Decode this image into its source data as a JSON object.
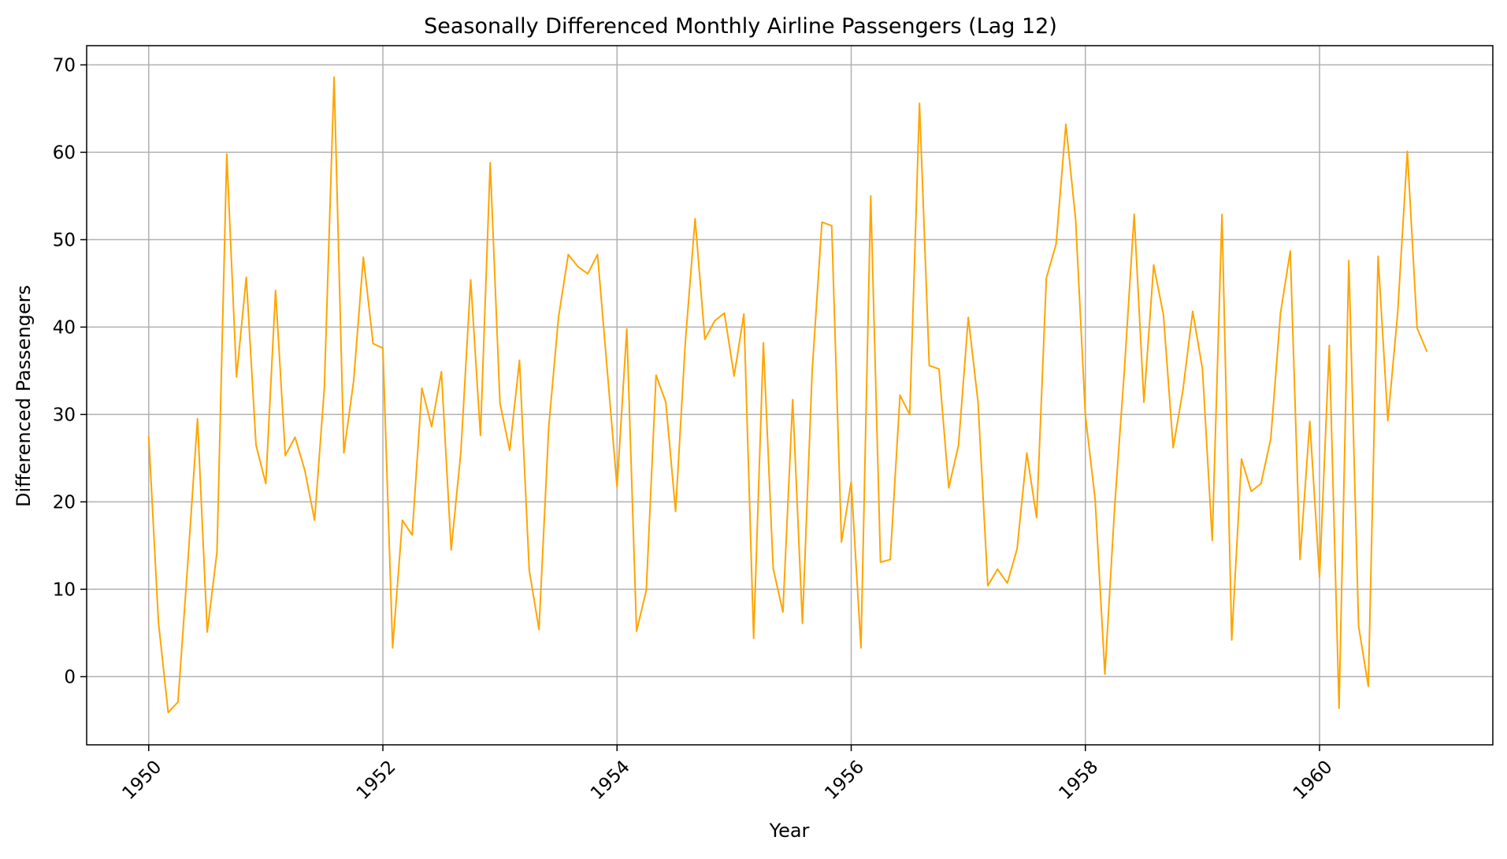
{
  "chart_data": {
    "type": "line",
    "title": "Seasonally Differenced Monthly Airline Passengers (Lag 12)",
    "xlabel": "Year",
    "ylabel": "Differenced Passengers",
    "x_ticks": [
      "1950",
      "1952",
      "1954",
      "1956",
      "1958",
      "1960"
    ],
    "y_ticks": [
      0,
      10,
      20,
      30,
      40,
      50,
      60,
      70
    ],
    "xlim": [
      1949.47,
      1961.48
    ],
    "ylim": [
      -7.8,
      72.2
    ],
    "grid": true,
    "line_color": "#FFA500",
    "series": [
      {
        "x_start": "1950-01",
        "frequency": "monthly",
        "values": [
          27.5,
          6.2,
          -4.1,
          -2.9,
          12.9,
          29.5,
          5.1,
          14.3,
          59.8,
          34.3,
          45.7,
          26.5,
          22.1,
          44.2,
          25.3,
          27.4,
          23.6,
          17.9,
          33.0,
          68.6,
          25.6,
          33.8,
          48.0,
          38.1,
          37.6,
          3.3,
          17.9,
          16.2,
          33.0,
          28.6,
          34.9,
          14.5,
          25.8,
          45.4,
          27.6,
          58.8,
          31.3,
          25.9,
          36.2,
          12.2,
          5.4,
          28.6,
          41.1,
          48.3,
          46.9,
          46.1,
          48.3,
          35.0,
          21.7,
          39.8,
          5.2,
          9.9,
          34.5,
          31.4,
          18.9,
          38.3,
          52.4,
          38.6,
          40.7,
          41.6,
          34.4,
          41.5,
          4.4,
          38.2,
          12.4,
          7.4,
          31.7,
          6.1,
          35.0,
          52.0,
          51.6,
          15.4,
          22.3,
          3.3,
          55.0,
          13.1,
          13.4,
          32.2,
          30.0,
          65.6,
          35.6,
          35.2,
          21.6,
          26.5,
          41.1,
          31.4,
          10.4,
          12.3,
          10.7,
          14.6,
          25.6,
          18.2,
          45.6,
          49.5,
          63.2,
          52.3,
          29.9,
          20.3,
          0.3,
          19.4,
          35.1,
          52.9,
          31.4,
          47.1,
          41.4,
          26.2,
          32.8,
          41.8,
          35.2,
          15.6,
          52.9,
          4.2,
          24.9,
          21.2,
          22.1,
          27.2,
          41.6,
          48.7,
          13.4,
          29.2,
          11.4,
          37.9,
          -3.6,
          47.6,
          5.8,
          -1.1,
          48.1,
          29.3,
          41.5,
          60.1,
          39.9,
          37.2
        ]
      }
    ]
  }
}
